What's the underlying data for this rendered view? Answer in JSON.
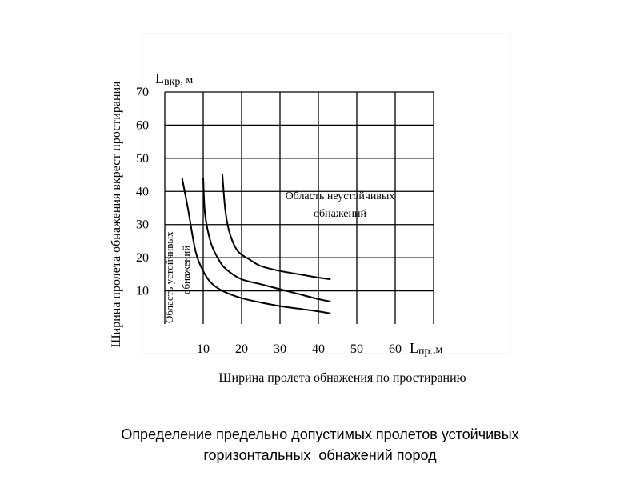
{
  "chart_data": {
    "type": "line",
    "y_unit_label": {
      "main": "L",
      "sub": "вкр",
      "tail": ", м"
    },
    "x_unit_label": {
      "main": "L",
      "sub": "пр.",
      "tail": ",м"
    },
    "ylabel": "Ширина пролета обнажения вкрест простирания",
    "xlabel": "Ширина пролета обнажения по простиранию",
    "xlim": [
      0,
      70
    ],
    "ylim": [
      0,
      70
    ],
    "x_ticks": [
      10,
      20,
      30,
      40,
      50,
      60
    ],
    "y_ticks": [
      10,
      20,
      30,
      40,
      50,
      60,
      70
    ],
    "x_tick_labels": [
      "10",
      "20",
      "30",
      "40",
      "50",
      "60"
    ],
    "y_tick_labels": [
      "10",
      "20",
      "30",
      "40",
      "50",
      "60",
      "70"
    ],
    "grid": true,
    "series": [
      {
        "x": [
          4.5,
          6,
          8,
          10,
          12,
          15,
          20,
          25,
          30,
          35,
          40,
          43
        ],
        "y": [
          44,
          35,
          22,
          16,
          12.5,
          10,
          7.8,
          6.5,
          5.4,
          4.6,
          3.8,
          3.2
        ]
      },
      {
        "x": [
          10,
          10.5,
          12,
          14,
          16,
          20,
          25,
          30,
          35,
          40,
          43
        ],
        "y": [
          44,
          33,
          24.5,
          19.5,
          16.5,
          13.5,
          12,
          10.5,
          9,
          7.5,
          6.8
        ]
      },
      {
        "x": [
          15,
          15.8,
          17,
          19,
          22,
          25,
          30,
          35,
          40,
          43
        ],
        "y": [
          45,
          34,
          27,
          22,
          19.5,
          17.5,
          16,
          15,
          14,
          13.5
        ]
      }
    ],
    "annotations": {
      "unstable_line1": "Область неустойчивых",
      "unstable_line2": "обнажений",
      "stable_line1": "Область устойчивых",
      "stable_line2": "обнажений"
    }
  },
  "caption": {
    "line1": "Определение предельно допустимых пролетов устойчивых",
    "line2": "горизонтальных  обнажений пород"
  }
}
